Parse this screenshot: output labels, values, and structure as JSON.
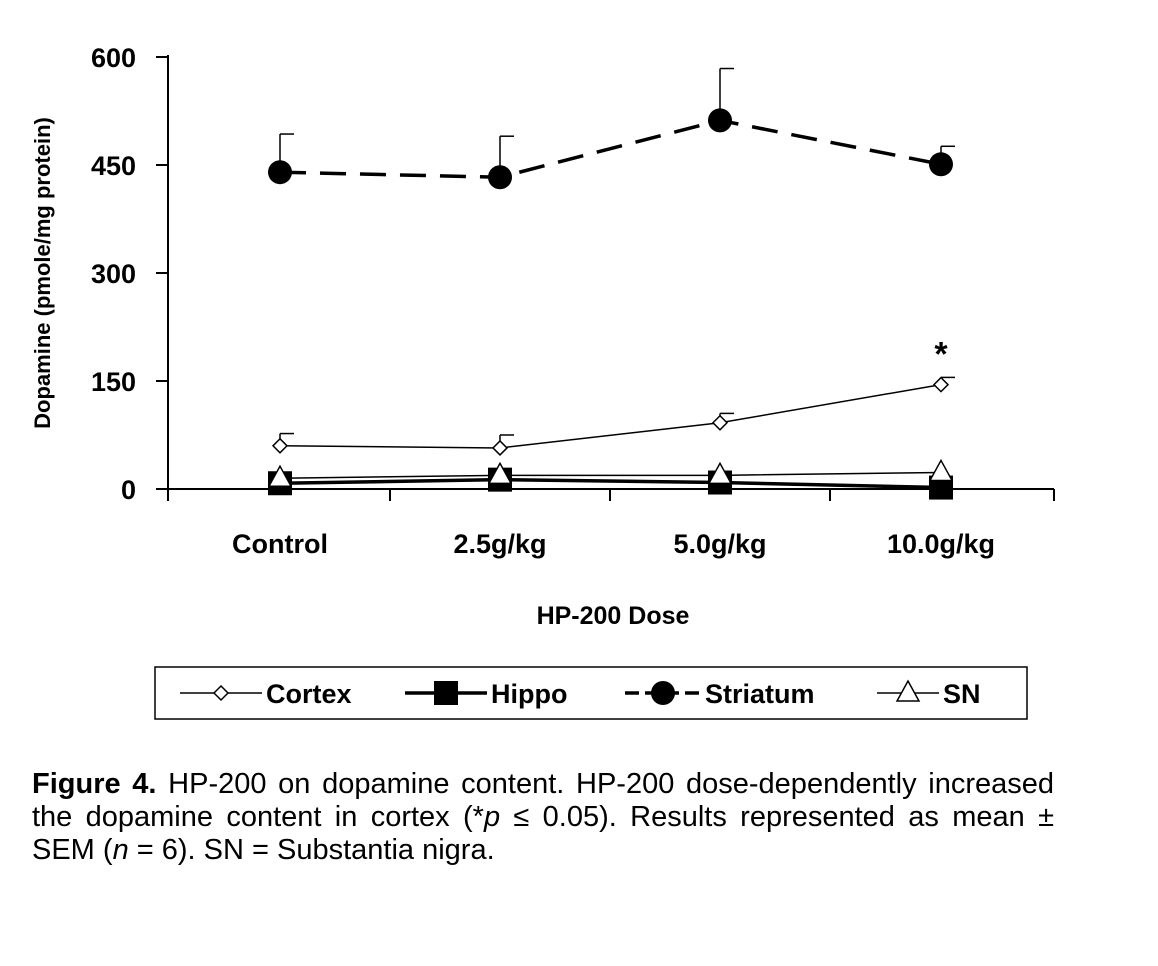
{
  "chart_data": {
    "type": "line",
    "title": "",
    "xlabel": "HP-200 Dose",
    "ylabel": "Dopamine (pmole/mg protein)",
    "categories": [
      "Control",
      "2.5g/kg",
      "5.0g/kg",
      "10.0g/kg"
    ],
    "ylim": [
      0,
      600
    ],
    "yticks": [
      "0",
      "150",
      "300",
      "450",
      "600"
    ],
    "series": [
      {
        "name": "Cortex",
        "marker": "diamond-open",
        "line": "solid-thin",
        "values": [
          60,
          57,
          92,
          145
        ],
        "errors": [
          17,
          18,
          13,
          10
        ]
      },
      {
        "name": "Hippo",
        "marker": "square-filled",
        "line": "solid-thick",
        "values": [
          8,
          13,
          9,
          2
        ],
        "errors": [
          0,
          0,
          0,
          0
        ]
      },
      {
        "name": "Striatum",
        "marker": "circle-filled",
        "line": "dashed-thick",
        "values": [
          440,
          433,
          512,
          451
        ],
        "errors": [
          53,
          57,
          72,
          25
        ]
      },
      {
        "name": "SN",
        "marker": "triangle-open",
        "line": "solid-thin",
        "values": [
          15,
          19,
          19,
          23
        ],
        "errors": [
          0,
          0,
          0,
          0
        ]
      }
    ],
    "annotations": [
      {
        "category": "10.0g/kg",
        "series": "Cortex",
        "text": "*"
      }
    ],
    "legend_position": "bottom-center"
  },
  "caption": {
    "label": "Figure 4.",
    "part1": " HP-200 on dopamine content. HP-200 dose-dependently increased the dopamine content in cortex (*",
    "p": "p",
    "part2": " ≤ 0.05). Results represented as mean ± SEM (",
    "n": "n",
    "part3": " = 6). SN = Substantia nigra."
  },
  "colors": {
    "ink": "#000000",
    "background": "#ffffff"
  }
}
